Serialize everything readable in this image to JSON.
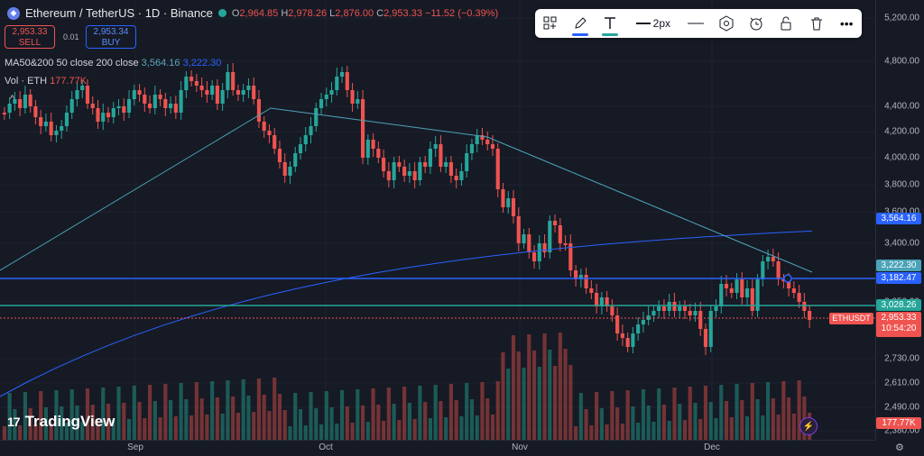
{
  "legend": {
    "symbol": "Ethereum / TetherUS · 1D · Binance",
    "open_label": "O",
    "open": "2,964.85",
    "high_label": "H",
    "high": "2,978.26",
    "low_label": "L",
    "low": "2,876.00",
    "close_label": "C",
    "close": "2,953.33",
    "change": "−11.52 (−0.39%)"
  },
  "trade": {
    "sell_price": "2,953.33",
    "sell_label": "SELL",
    "spread": "0.01",
    "buy_price": "2,953.34",
    "buy_label": "BUY"
  },
  "indicators": {
    "ma_label": "MA50&200 50 close 200 close",
    "ma50_value": "3,564.16",
    "ma200_value": "3,222.30",
    "vol_label": "Vol · ETH",
    "vol_value": "177.77K",
    "collapse_glyph": "^"
  },
  "toolbar": {
    "line_width_label": "2px",
    "more_glyph": "•••"
  },
  "logo_text": "TradingView",
  "ethusdt_tag": "ETHUSDT",
  "price_labels": {
    "ma50": "3,564.16",
    "ma200": "3,222.30",
    "hline1": "3,182.47",
    "hline2": "3,028.26",
    "last": "2,953.33",
    "countdown": "10:54:20",
    "volume": "177.77K"
  },
  "axis": {
    "ticks": [
      "5,200.00",
      "4,800.00",
      "4,400.00",
      "4,200.00",
      "4,000.00",
      "3,800.00",
      "3,600.00",
      "3,400.00",
      "3,050.00",
      "2,730.00",
      "2,610.00",
      "2,490.00",
      "2,380.00"
    ],
    "months": [
      "Sep",
      "Oct",
      "Nov",
      "Dec"
    ]
  },
  "colors": {
    "up": "#26a69a",
    "down": "#ef5350",
    "ma50": "#4ba3b7",
    "ma200": "#2962ff",
    "hline1": "#2962ff",
    "hline2": "#26a69a"
  },
  "chart_data": {
    "type": "candlestick",
    "title": "Ethereum / TetherUS · 1D · Binance",
    "xlabel": "",
    "ylabel": "",
    "x_tick_labels": [
      "Sep",
      "Oct",
      "Nov",
      "Dec"
    ],
    "ylim": [
      2340,
      5300
    ],
    "horizontal_lines": [
      3182.47,
      3028.26
    ],
    "last_price": 2953.33,
    "series": [
      {
        "name": "ETHUSDT",
        "type": "candles"
      },
      {
        "name": "MA 50",
        "last": 3564.16
      },
      {
        "name": "MA 200",
        "last": 3222.3
      },
      {
        "name": "Vol",
        "last": "177.77K"
      }
    ]
  }
}
